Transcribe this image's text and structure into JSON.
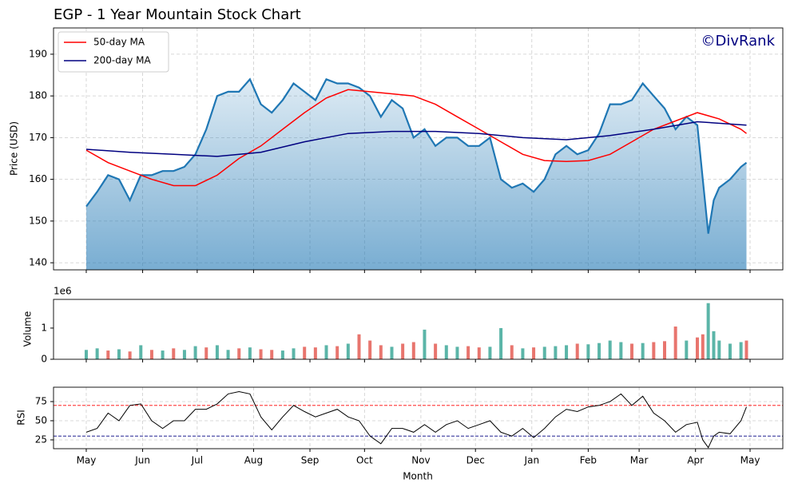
{
  "chart_data": [
    {
      "type": "area",
      "title": "EGP - 1 Year Mountain Stock Chart",
      "watermark": "©DivRank",
      "ylabel": "Price (USD)",
      "color": "#1f77b4",
      "grid": true,
      "legend": "upper left",
      "xlim": [
        -18,
        383
      ],
      "ylim": [
        138.3,
        196.3
      ],
      "yticks": [
        140,
        150,
        160,
        170,
        180,
        190
      ],
      "x": [
        0,
        6,
        12,
        18,
        24,
        30,
        36,
        42,
        48,
        54,
        60,
        66,
        72,
        78,
        84,
        90,
        96,
        102,
        108,
        114,
        120,
        126,
        132,
        138,
        144,
        150,
        156,
        162,
        168,
        174,
        180,
        186,
        192,
        198,
        204,
        210,
        216,
        222,
        228,
        234,
        240,
        246,
        252,
        258,
        264,
        270,
        276,
        282,
        288,
        294,
        300,
        306,
        312,
        318,
        324,
        330,
        336,
        339,
        342,
        345,
        348,
        354,
        360,
        363
      ],
      "values": [
        153.5,
        157,
        161,
        160,
        155,
        161,
        161,
        162,
        162,
        163,
        166,
        172,
        180,
        181,
        181,
        184,
        178,
        176,
        179,
        183,
        181,
        179,
        184,
        183,
        183,
        182,
        180,
        175,
        179,
        177,
        170,
        172,
        168,
        170,
        170,
        168,
        168,
        170,
        160,
        158,
        159,
        157,
        160,
        166,
        168,
        166,
        167,
        171,
        178,
        178,
        179,
        183,
        180,
        177,
        172,
        175,
        173,
        160,
        147,
        155,
        158,
        160,
        163,
        164
      ],
      "series": [
        {
          "name": "50-day MA",
          "color": "#ff0000",
          "x": [
            0,
            12,
            24,
            36,
            48,
            60,
            72,
            84,
            96,
            108,
            120,
            132,
            144,
            156,
            168,
            180,
            192,
            204,
            216,
            228,
            240,
            252,
            264,
            276,
            288,
            300,
            312,
            324,
            336,
            348,
            360,
            363
          ],
          "values": [
            167,
            164,
            162,
            160,
            158.5,
            158.5,
            161,
            165,
            168,
            172,
            176,
            179.5,
            181.5,
            181,
            180.5,
            180,
            178,
            175,
            172,
            169,
            166,
            164.5,
            164.3,
            164.5,
            166,
            169,
            172,
            174,
            176,
            174.5,
            172,
            171
          ]
        },
        {
          "name": "200-day MA",
          "color": "#000080",
          "x": [
            0,
            24,
            48,
            72,
            96,
            120,
            144,
            168,
            192,
            216,
            240,
            264,
            288,
            312,
            336,
            363
          ],
          "values": [
            167.2,
            166.5,
            166,
            165.5,
            166.5,
            169,
            171,
            171.5,
            171.5,
            171,
            170,
            169.5,
            170.5,
            172,
            173.8,
            173
          ]
        }
      ]
    },
    {
      "type": "bar",
      "ylabel": "Volume",
      "offset_label": "1e6",
      "xlim": [
        -18,
        383
      ],
      "ylim": [
        0,
        1920000
      ],
      "yticks": [
        0,
        {
          "value": 1000000,
          "label": "1"
        }
      ],
      "x": [
        0,
        6,
        12,
        18,
        24,
        30,
        36,
        42,
        48,
        54,
        60,
        66,
        72,
        78,
        84,
        90,
        96,
        102,
        108,
        114,
        120,
        126,
        132,
        138,
        144,
        150,
        156,
        162,
        168,
        174,
        180,
        186,
        192,
        198,
        204,
        210,
        216,
        222,
        228,
        234,
        240,
        246,
        252,
        258,
        264,
        270,
        276,
        282,
        288,
        294,
        300,
        306,
        312,
        318,
        324,
        330,
        336,
        339,
        342,
        345,
        348,
        354,
        360,
        363
      ],
      "values": [
        300000,
        350000,
        280000,
        320000,
        250000,
        450000,
        300000,
        280000,
        350000,
        300000,
        420000,
        380000,
        450000,
        300000,
        350000,
        380000,
        320000,
        300000,
        280000,
        350000,
        400000,
        380000,
        450000,
        420000,
        500000,
        800000,
        600000,
        450000,
        400000,
        500000,
        550000,
        950000,
        500000,
        450000,
        400000,
        420000,
        380000,
        400000,
        1000000,
        450000,
        350000,
        380000,
        400000,
        420000,
        450000,
        500000,
        480000,
        520000,
        600000,
        550000,
        500000,
        520000,
        550000,
        580000,
        1050000,
        600000,
        700000,
        800000,
        1800000,
        900000,
        600000,
        500000,
        550000,
        600000
      ],
      "colors": [
        "#5bb5a8",
        "#5bb5a8",
        "#e8756e",
        "#5bb5a8",
        "#e8756e",
        "#5bb5a8",
        "#e8756e",
        "#5bb5a8",
        "#e8756e",
        "#5bb5a8",
        "#5bb5a8",
        "#e8756e",
        "#5bb5a8",
        "#5bb5a8",
        "#e8756e",
        "#5bb5a8",
        "#e8756e",
        "#e8756e",
        "#5bb5a8",
        "#5bb5a8",
        "#e8756e",
        "#e8756e",
        "#5bb5a8",
        "#e8756e",
        "#5bb5a8",
        "#e8756e",
        "#e8756e",
        "#e8756e",
        "#5bb5a8",
        "#e8756e",
        "#e8756e",
        "#5bb5a8",
        "#e8756e",
        "#5bb5a8",
        "#5bb5a8",
        "#e8756e",
        "#e8756e",
        "#5bb5a8",
        "#5bb5a8",
        "#e8756e",
        "#5bb5a8",
        "#e8756e",
        "#5bb5a8",
        "#5bb5a8",
        "#5bb5a8",
        "#e8756e",
        "#5bb5a8",
        "#5bb5a8",
        "#5bb5a8",
        "#5bb5a8",
        "#e8756e",
        "#5bb5a8",
        "#e8756e",
        "#e8756e",
        "#e8756e",
        "#5bb5a8",
        "#e8756e",
        "#e8756e",
        "#5bb5a8",
        "#5bb5a8",
        "#5bb5a8",
        "#5bb5a8",
        "#5bb5a8",
        "#e8756e"
      ]
    },
    {
      "type": "line",
      "ylabel": "RSI",
      "xlabel": "Month",
      "color": "#000000",
      "grid": true,
      "xlim": [
        -18,
        383
      ],
      "ylim": [
        13.5,
        93.75
      ],
      "yticks": [
        25,
        50,
        75
      ],
      "hlines": [
        {
          "value": 70,
          "color": "#ff0000"
        },
        {
          "value": 30,
          "color": "#000080"
        }
      ],
      "xticks": [
        {
          "value": 0,
          "label": "May"
        },
        {
          "value": 31,
          "label": "Jun"
        },
        {
          "value": 61,
          "label": "Jul"
        },
        {
          "value": 92,
          "label": "Aug"
        },
        {
          "value": 123,
          "label": "Sep"
        },
        {
          "value": 153,
          "label": "Oct"
        },
        {
          "value": 184,
          "label": "Nov"
        },
        {
          "value": 214,
          "label": "Dec"
        },
        {
          "value": 245,
          "label": "Jan"
        },
        {
          "value": 276,
          "label": "Feb"
        },
        {
          "value": 304,
          "label": "Mar"
        },
        {
          "value": 335,
          "label": "Apr"
        },
        {
          "value": 365,
          "label": "May"
        }
      ],
      "x": [
        0,
        6,
        12,
        18,
        24,
        30,
        36,
        42,
        48,
        54,
        60,
        66,
        72,
        78,
        84,
        90,
        96,
        102,
        108,
        114,
        120,
        126,
        132,
        138,
        144,
        150,
        156,
        162,
        168,
        174,
        180,
        186,
        192,
        198,
        204,
        210,
        216,
        222,
        228,
        234,
        240,
        246,
        252,
        258,
        264,
        270,
        276,
        282,
        288,
        294,
        300,
        306,
        312,
        318,
        324,
        330,
        336,
        339,
        342,
        345,
        348,
        354,
        360,
        363
      ],
      "values": [
        35,
        40,
        60,
        50,
        70,
        72,
        50,
        40,
        50,
        50,
        65,
        65,
        72,
        85,
        88,
        85,
        55,
        38,
        55,
        70,
        62,
        55,
        60,
        65,
        55,
        50,
        30,
        20,
        40,
        40,
        35,
        45,
        35,
        45,
        50,
        40,
        45,
        50,
        35,
        30,
        40,
        28,
        40,
        55,
        65,
        62,
        68,
        70,
        75,
        85,
        70,
        82,
        60,
        50,
        35,
        45,
        48,
        25,
        15,
        30,
        35,
        33,
        50,
        68
      ]
    }
  ]
}
